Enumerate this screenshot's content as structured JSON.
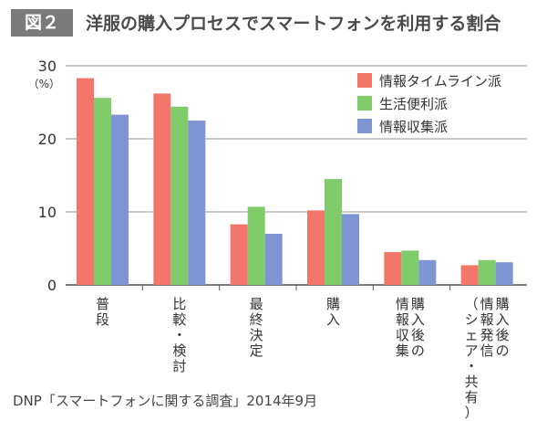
{
  "header": {
    "figure_label": "図２",
    "title": "洋服の購入プロセスでスマートフォンを利用する割合"
  },
  "chart_data": {
    "type": "bar",
    "unit_label": "（%）",
    "ylim": [
      0,
      30
    ],
    "yticks": [
      0,
      10,
      20,
      30
    ],
    "categories": [
      [
        "普",
        "段"
      ],
      [
        "比",
        "較",
        "・",
        "検",
        "討"
      ],
      [
        "最",
        "終",
        "決",
        "定"
      ],
      [
        "購",
        "入"
      ],
      [
        "情",
        "報",
        "収",
        "集"
      ],
      [
        "（",
        "シ",
        "ェ",
        "ア",
        "・",
        "共",
        "有",
        "）"
      ]
    ],
    "category_extra_columns": [
      [],
      [],
      [],
      [],
      [
        [
          "購",
          "入",
          "後",
          "の"
        ]
      ],
      [
        [
          "情",
          "報",
          "発",
          "信"
        ],
        [
          "購",
          "入",
          "後",
          "の"
        ]
      ]
    ],
    "series": [
      {
        "name": "情報タイムライン派",
        "color": "#f2776a",
        "values": [
          28.3,
          26.2,
          8.3,
          10.2,
          4.5,
          2.7
        ]
      },
      {
        "name": "生活便利派",
        "color": "#80cc6b",
        "values": [
          25.6,
          24.4,
          10.7,
          14.5,
          4.7,
          3.4
        ]
      },
      {
        "name": "情報収集派",
        "color": "#7f95d3",
        "values": [
          23.3,
          22.5,
          7.0,
          9.7,
          3.4,
          3.1
        ]
      }
    ],
    "legend_position": "top-right",
    "grid": true
  },
  "footer": {
    "source": "DNP「スマートフォンに関する調査」2014年9月"
  }
}
